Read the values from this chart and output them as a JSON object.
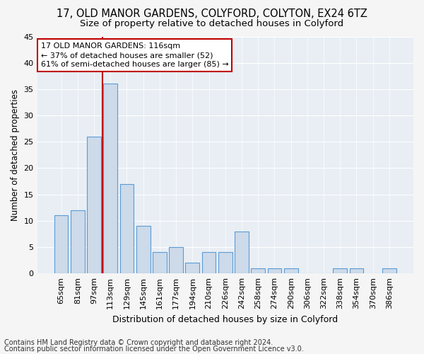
{
  "title": "17, OLD MANOR GARDENS, COLYFORD, COLYTON, EX24 6TZ",
  "subtitle": "Size of property relative to detached houses in Colyford",
  "xlabel": "Distribution of detached houses by size in Colyford",
  "ylabel": "Number of detached properties",
  "categories": [
    "65sqm",
    "81sqm",
    "97sqm",
    "113sqm",
    "129sqm",
    "145sqm",
    "161sqm",
    "177sqm",
    "194sqm",
    "210sqm",
    "226sqm",
    "242sqm",
    "258sqm",
    "274sqm",
    "290sqm",
    "306sqm",
    "322sqm",
    "338sqm",
    "354sqm",
    "370sqm",
    "386sqm"
  ],
  "values": [
    11,
    12,
    26,
    36,
    17,
    9,
    4,
    5,
    2,
    4,
    4,
    8,
    1,
    1,
    1,
    0,
    0,
    1,
    1,
    0,
    1
  ],
  "bar_color": "#ccdaea",
  "bar_edge_color": "#5b9bd5",
  "vline_index": 3,
  "vline_color": "#c00000",
  "annotation_line1": "17 OLD MANOR GARDENS: 116sqm",
  "annotation_line2": "← 37% of detached houses are smaller (52)",
  "annotation_line3": "61% of semi-detached houses are larger (85) →",
  "annotation_box_facecolor": "#ffffff",
  "annotation_box_edgecolor": "#c00000",
  "ylim": [
    0,
    45
  ],
  "yticks": [
    0,
    5,
    10,
    15,
    20,
    25,
    30,
    35,
    40,
    45
  ],
  "fig_facecolor": "#f5f5f5",
  "plot_facecolor": "#e8eef4",
  "grid_color": "#ffffff",
  "title_fontsize": 10.5,
  "subtitle_fontsize": 9.5,
  "xlabel_fontsize": 9,
  "ylabel_fontsize": 8.5,
  "tick_fontsize": 8,
  "annotation_fontsize": 8,
  "footer_fontsize": 7,
  "footer_line1": "Contains HM Land Registry data © Crown copyright and database right 2024.",
  "footer_line2": "Contains public sector information licensed under the Open Government Licence v3.0."
}
